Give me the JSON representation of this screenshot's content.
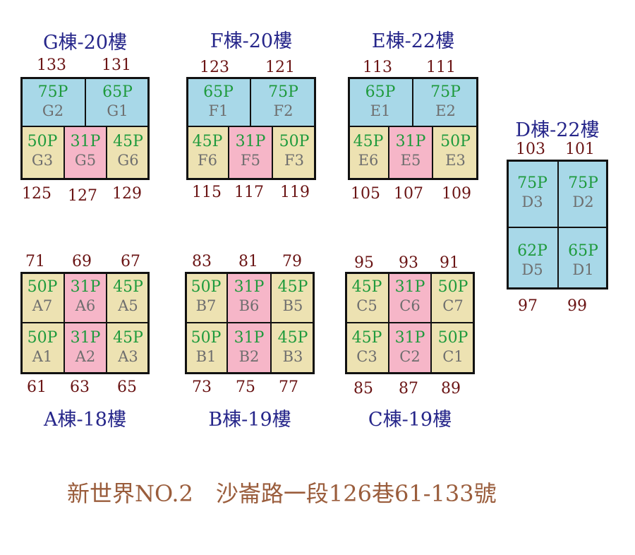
{
  "colors": {
    "large": "#a8d8e8",
    "medium": "#ede2b2",
    "small": "#f6b6c8",
    "title": "#26268a",
    "number": "#6a1414",
    "size_text": "#1e9a3c",
    "code_text": "#6e6e6e",
    "footer": "#9a5d3c"
  },
  "buildings": [
    {
      "id": "G",
      "title": "G棟-20樓",
      "top_numbers": [
        "133",
        "131"
      ],
      "bottom_numbers": [
        "125",
        "127",
        "129"
      ],
      "rows": [
        [
          {
            "size": "75P",
            "code": "G2",
            "type": "large"
          },
          {
            "size": "65P",
            "code": "G1",
            "type": "large"
          }
        ],
        [
          {
            "size": "50P",
            "code": "G3",
            "type": "medium"
          },
          {
            "size": "31P",
            "code": "G5",
            "type": "small"
          },
          {
            "size": "45P",
            "code": "G6",
            "type": "medium"
          }
        ]
      ]
    },
    {
      "id": "F",
      "title": "F棟-20樓",
      "top_numbers": [
        "123",
        "121"
      ],
      "bottom_numbers": [
        "115",
        "117",
        "119"
      ],
      "rows": [
        [
          {
            "size": "65P",
            "code": "F1",
            "type": "large"
          },
          {
            "size": "75P",
            "code": "F2",
            "type": "large"
          }
        ],
        [
          {
            "size": "45P",
            "code": "F6",
            "type": "medium"
          },
          {
            "size": "31P",
            "code": "F5",
            "type": "small"
          },
          {
            "size": "50P",
            "code": "F3",
            "type": "medium"
          }
        ]
      ]
    },
    {
      "id": "E",
      "title": "E棟-22樓",
      "top_numbers": [
        "113",
        "111"
      ],
      "bottom_numbers": [
        "105",
        "107",
        "109"
      ],
      "rows": [
        [
          {
            "size": "65P",
            "code": "E1",
            "type": "large"
          },
          {
            "size": "75P",
            "code": "E2",
            "type": "large"
          }
        ],
        [
          {
            "size": "45P",
            "code": "E6",
            "type": "medium"
          },
          {
            "size": "31P",
            "code": "E5",
            "type": "small"
          },
          {
            "size": "50P",
            "code": "E3",
            "type": "medium"
          }
        ]
      ]
    },
    {
      "id": "D",
      "title": "D棟-22樓",
      "top_numbers": [
        "103",
        "101"
      ],
      "bottom_numbers": [
        "97",
        "99"
      ],
      "rows": [
        [
          {
            "size": "75P",
            "code": "D3",
            "type": "large"
          },
          {
            "size": "75P",
            "code": "D2",
            "type": "large"
          }
        ],
        [
          {
            "size": "62P",
            "code": "D5",
            "type": "large"
          },
          {
            "size": "65P",
            "code": "D1",
            "type": "large"
          }
        ]
      ]
    },
    {
      "id": "A",
      "title": "A棟-18樓",
      "top_numbers": [
        "71",
        "69",
        "67"
      ],
      "bottom_numbers": [
        "61",
        "63",
        "65"
      ],
      "rows": [
        [
          {
            "size": "50P",
            "code": "A7",
            "type": "medium"
          },
          {
            "size": "31P",
            "code": "A6",
            "type": "small"
          },
          {
            "size": "45P",
            "code": "A5",
            "type": "medium"
          }
        ],
        [
          {
            "size": "50P",
            "code": "A1",
            "type": "medium"
          },
          {
            "size": "31P",
            "code": "A2",
            "type": "small"
          },
          {
            "size": "45P",
            "code": "A3",
            "type": "medium"
          }
        ]
      ]
    },
    {
      "id": "B",
      "title": "B棟-19樓",
      "top_numbers": [
        "83",
        "81",
        "79"
      ],
      "bottom_numbers": [
        "73",
        "75",
        "77"
      ],
      "rows": [
        [
          {
            "size": "50P",
            "code": "B7",
            "type": "medium"
          },
          {
            "size": "31P",
            "code": "B6",
            "type": "small"
          },
          {
            "size": "45P",
            "code": "B5",
            "type": "medium"
          }
        ],
        [
          {
            "size": "50P",
            "code": "B1",
            "type": "medium"
          },
          {
            "size": "31P",
            "code": "B2",
            "type": "small"
          },
          {
            "size": "45P",
            "code": "B3",
            "type": "medium"
          }
        ]
      ]
    },
    {
      "id": "C",
      "title": "C棟-19樓",
      "top_numbers": [
        "95",
        "93",
        "91"
      ],
      "bottom_numbers": [
        "85",
        "87",
        "89"
      ],
      "rows": [
        [
          {
            "size": "45P",
            "code": "C5",
            "type": "medium"
          },
          {
            "size": "31P",
            "code": "C6",
            "type": "small"
          },
          {
            "size": "50P",
            "code": "C7",
            "type": "medium"
          }
        ],
        [
          {
            "size": "45P",
            "code": "C3",
            "type": "medium"
          },
          {
            "size": "31P",
            "code": "C2",
            "type": "small"
          },
          {
            "size": "50P",
            "code": "C1",
            "type": "medium"
          }
        ]
      ]
    }
  ],
  "footer": "新世界NO.2　沙崙路一段126巷61-133號"
}
